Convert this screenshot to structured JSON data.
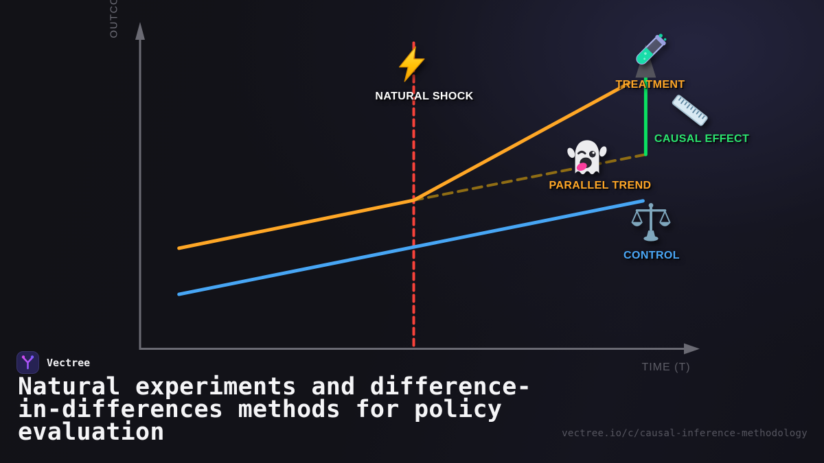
{
  "brand": {
    "name": "Vectree"
  },
  "title": {
    "full": "Natural experiments and difference-in-differences methods for policy evaluation",
    "lines": [
      "Natural experiments and difference-",
      "in-differences methods for policy",
      "evaluation"
    ]
  },
  "footer_url": "vectree.io/c/causal-inference-methodology",
  "colors": {
    "treatment": "#FFA726",
    "control": "#47A6F5",
    "parallel_trend": "#8F6D14",
    "shock": "#F8423A",
    "causal_effect": "#0BE161",
    "axis": "#6A6A73",
    "arrowhead": "#54545C"
  },
  "chart_data": {
    "type": "line",
    "title": "",
    "xlabel": "TIME (T)",
    "ylabel": "OUTCOME",
    "xlim": [
      0,
      10
    ],
    "ylim": [
      0,
      100
    ],
    "grid": false,
    "legend_position": "none",
    "shock_time": 5,
    "series": [
      {
        "name": "NATURAL SHOCK",
        "role": "event-line",
        "color": "#F8423A",
        "style": "dashed-vertical",
        "width": 4,
        "points": [
          [
            5,
            1
          ],
          [
            5,
            100
          ]
        ]
      },
      {
        "name": "PARALLEL TREND",
        "role": "counterfactual",
        "color": "#8F6D14",
        "style": "dashed",
        "width": 4,
        "points": [
          [
            5,
            47.9
          ],
          [
            9.25,
            62.7
          ]
        ]
      },
      {
        "name": "CONTROL",
        "role": "control-group",
        "color": "#47A6F5",
        "style": "solid",
        "width": 5,
        "points": [
          [
            0.7,
            17.5
          ],
          [
            9.2,
            47.7
          ]
        ]
      },
      {
        "name": "TREATMENT",
        "role": "treated-group",
        "color": "#FFA726",
        "style": "solid",
        "width": 5,
        "points": [
          [
            0.7,
            32.4
          ],
          [
            5,
            47.9
          ],
          [
            8.95,
            85.8
          ]
        ]
      },
      {
        "name": "CAUSAL EFFECT",
        "role": "effect-gap",
        "color": "#0BE161",
        "style": "solid-vertical-arrow",
        "width": 5,
        "points": [
          [
            9.25,
            62.7
          ],
          [
            9.25,
            88
          ]
        ]
      }
    ],
    "annotations": [
      {
        "id": "natural-shock",
        "label": "NATURAL SHOCK",
        "icon": "lightning-icon",
        "color": "#FFFFFF"
      },
      {
        "id": "treatment",
        "label": "TREATMENT",
        "icon": "test-tube-icon",
        "color": "#FFA726"
      },
      {
        "id": "causal-effect",
        "label": "CAUSAL EFFECT",
        "icon": "ruler-icon",
        "color": "#2BE56E"
      },
      {
        "id": "parallel-trend",
        "label": "PARALLEL TREND",
        "icon": "ghost-icon",
        "color": "#FFA726"
      },
      {
        "id": "control",
        "label": "CONTROL",
        "icon": "scales-icon",
        "color": "#4AA7F6"
      }
    ]
  }
}
